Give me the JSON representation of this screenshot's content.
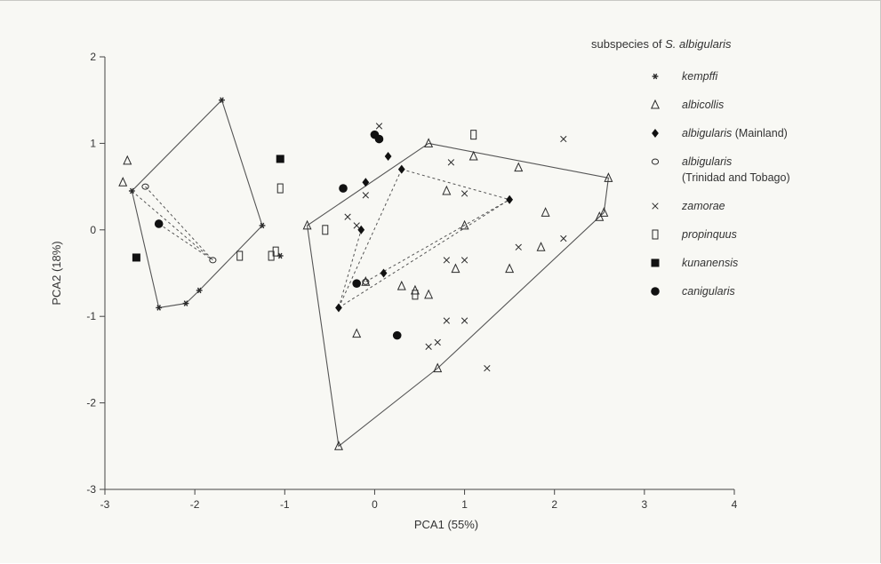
{
  "chart_data": {
    "type": "scatter",
    "title": "",
    "xlabel": "PCA1 (55%)",
    "ylabel": "PCA2 (18%)",
    "xlim": [
      -3,
      4
    ],
    "ylim": [
      -3,
      2
    ],
    "xticks": [
      -3,
      -2,
      -1,
      0,
      1,
      2,
      3,
      4
    ],
    "yticks": [
      -3,
      -2,
      -1,
      0,
      1,
      2
    ],
    "xtick_labels": [
      "-3",
      "-2",
      "-1",
      "0",
      "1",
      "2",
      "3",
      "4"
    ],
    "ytick_labels": [
      "-3",
      "-2",
      "-1",
      "0",
      "1",
      "2"
    ],
    "grid": false,
    "legend": {
      "title_prefix": "subspecies of ",
      "title_italic": "S. albigularis",
      "placement": "right"
    },
    "series": [
      {
        "name": "kempffi",
        "marker": "star",
        "points": [
          [
            -1.7,
            1.5
          ],
          [
            -1.25,
            0.05
          ],
          [
            -1.95,
            -0.7
          ],
          [
            -2.1,
            -0.85
          ],
          [
            -2.4,
            -0.9
          ],
          [
            -2.7,
            0.45
          ],
          [
            -1.05,
            -0.3
          ]
        ]
      },
      {
        "name": "albicollis",
        "marker": "triangle",
        "points": [
          [
            -2.75,
            0.8
          ],
          [
            -2.8,
            0.55
          ],
          [
            -0.75,
            0.05
          ],
          [
            0.6,
            1.0
          ],
          [
            1.1,
            0.85
          ],
          [
            1.6,
            0.72
          ],
          [
            2.6,
            0.6
          ],
          [
            2.55,
            0.2
          ],
          [
            2.5,
            0.15
          ],
          [
            1.9,
            0.2
          ],
          [
            1.85,
            -0.2
          ],
          [
            1.5,
            -0.45
          ],
          [
            1.0,
            0.05
          ],
          [
            0.9,
            -0.45
          ],
          [
            0.8,
            0.45
          ],
          [
            0.3,
            -0.65
          ],
          [
            0.6,
            -0.75
          ],
          [
            0.45,
            -0.7
          ],
          [
            -0.1,
            -0.6
          ],
          [
            -0.2,
            -1.2
          ],
          [
            -0.4,
            -2.5
          ],
          [
            0.7,
            -1.6
          ]
        ]
      },
      {
        "name_prefix": "albigularis",
        "name_suffix": " (Mainland)",
        "marker": "diamond",
        "points": [
          [
            -0.1,
            0.55
          ],
          [
            0.15,
            0.85
          ],
          [
            0.3,
            0.7
          ],
          [
            -0.15,
            0.0
          ],
          [
            0.1,
            -0.5
          ],
          [
            1.5,
            0.35
          ],
          [
            -0.4,
            -0.9
          ]
        ]
      },
      {
        "name_prefix": "albigularis",
        "name_line2": "(Trinidad and Tobago)",
        "marker": "circle-open",
        "points": [
          [
            -2.55,
            0.5
          ],
          [
            -1.8,
            -0.35
          ],
          [
            -0.1,
            -0.6
          ]
        ]
      },
      {
        "name": "zamorae",
        "marker": "x",
        "points": [
          [
            0.05,
            1.2
          ],
          [
            0.85,
            0.78
          ],
          [
            2.1,
            1.05
          ],
          [
            1.0,
            0.42
          ],
          [
            -0.1,
            0.4
          ],
          [
            -0.3,
            0.15
          ],
          [
            -0.2,
            0.05
          ],
          [
            1.6,
            -0.2
          ],
          [
            2.1,
            -0.1
          ],
          [
            0.8,
            -0.35
          ],
          [
            1.0,
            -0.35
          ],
          [
            0.8,
            -1.05
          ],
          [
            1.0,
            -1.05
          ],
          [
            0.6,
            -1.35
          ],
          [
            0.7,
            -1.3
          ],
          [
            1.25,
            -1.6
          ]
        ]
      },
      {
        "name": "propinquus",
        "marker": "rect-open",
        "points": [
          [
            1.1,
            1.1
          ],
          [
            -1.05,
            0.48
          ],
          [
            -0.55,
            0.0
          ],
          [
            -1.5,
            -0.3
          ],
          [
            -1.15,
            -0.3
          ],
          [
            -1.1,
            -0.25
          ],
          [
            0.45,
            -0.75
          ]
        ]
      },
      {
        "name": "kunanensis",
        "marker": "square",
        "points": [
          [
            -1.05,
            0.82
          ],
          [
            -2.65,
            -0.32
          ]
        ]
      },
      {
        "name": "canigularis",
        "marker": "circle",
        "points": [
          [
            0.0,
            1.1
          ],
          [
            0.05,
            1.05
          ],
          [
            -0.35,
            0.48
          ],
          [
            -2.4,
            0.07
          ],
          [
            -0.2,
            -0.62
          ],
          [
            0.25,
            -1.22
          ]
        ]
      }
    ],
    "hulls": [
      [
        [
          -1.7,
          1.5
        ],
        [
          -1.25,
          0.05
        ],
        [
          -1.95,
          -0.7
        ],
        [
          -2.1,
          -0.85
        ],
        [
          -2.4,
          -0.9
        ],
        [
          -2.7,
          0.45
        ]
      ],
      [
        [
          0.6,
          1.0
        ],
        [
          2.6,
          0.6
        ],
        [
          2.55,
          0.2
        ],
        [
          0.7,
          -1.6
        ],
        [
          -0.4,
          -2.5
        ],
        [
          -0.75,
          0.05
        ]
      ]
    ],
    "dashed_links": [
      [
        [
          -2.55,
          0.5
        ],
        [
          -1.8,
          -0.35
        ]
      ],
      [
        [
          -2.7,
          0.45
        ],
        [
          -1.8,
          -0.35
        ]
      ],
      [
        [
          -2.4,
          0.07
        ],
        [
          -1.8,
          -0.35
        ]
      ],
      [
        [
          -0.4,
          -0.9
        ],
        [
          1.5,
          0.35
        ]
      ],
      [
        [
          -0.4,
          -0.9
        ],
        [
          0.3,
          0.7
        ]
      ],
      [
        [
          0.3,
          0.7
        ],
        [
          1.5,
          0.35
        ]
      ],
      [
        [
          -0.1,
          -0.6
        ],
        [
          1.5,
          0.35
        ]
      ],
      [
        [
          -0.4,
          -0.9
        ],
        [
          -0.15,
          0.0
        ]
      ]
    ]
  }
}
